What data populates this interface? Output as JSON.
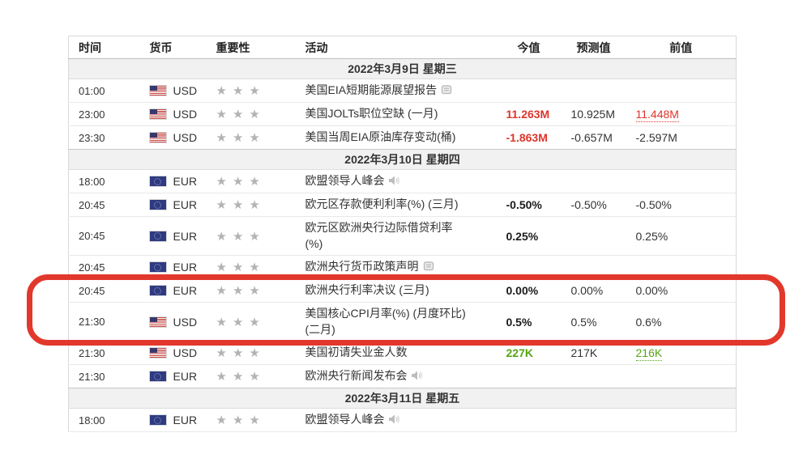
{
  "colors": {
    "red": "#dd342b",
    "green": "#55a513",
    "annotation": "#e2382c",
    "star": "#b3b3b3",
    "date_row_bg": "#f1f1f1"
  },
  "table": {
    "columns": [
      {
        "label": "时间",
        "align": "left"
      },
      {
        "label": "货币",
        "align": "left"
      },
      {
        "label": "重要性",
        "align": "left"
      },
      {
        "label": "活动",
        "align": "left"
      },
      {
        "label": "今值",
        "align": "center"
      },
      {
        "label": "预测值",
        "align": "center"
      },
      {
        "label": "前值",
        "align": "center"
      }
    ],
    "sections": [
      {
        "date_label": "2022年3月9日 星期三",
        "rows": [
          {
            "time": "01:00",
            "flag": "us",
            "currency": "USD",
            "stars": 3,
            "event_lines": [
              "美国EIA短期能源展望报告"
            ],
            "event_icon": "report-icon",
            "actual": "",
            "actual_color": null,
            "forecast": "",
            "previous": "",
            "previous_color": null,
            "previous_revised": false,
            "highlighted": false
          },
          {
            "time": "23:00",
            "flag": "us",
            "currency": "USD",
            "stars": 3,
            "event_lines": [
              "美国JOLTs职位空缺 (一月)"
            ],
            "event_icon": null,
            "actual": "11.263M",
            "actual_color": "red",
            "forecast": "10.925M",
            "previous": "11.448M",
            "previous_color": "red",
            "previous_revised": true,
            "highlighted": false
          },
          {
            "time": "23:30",
            "flag": "us",
            "currency": "USD",
            "stars": 3,
            "event_lines": [
              "美国当周EIA原油库存变动(桶)"
            ],
            "event_icon": null,
            "actual": "-1.863M",
            "actual_color": "red",
            "forecast": "-0.657M",
            "previous": "-2.597M",
            "previous_color": null,
            "previous_revised": false,
            "highlighted": false
          }
        ]
      },
      {
        "date_label": "2022年3月10日 星期四",
        "rows": [
          {
            "time": "18:00",
            "flag": "eu",
            "currency": "EUR",
            "stars": 3,
            "event_lines": [
              "欧盟领导人峰会"
            ],
            "event_icon": "speaker-icon",
            "actual": "",
            "actual_color": null,
            "forecast": "",
            "previous": "",
            "previous_color": null,
            "previous_revised": false,
            "highlighted": false
          },
          {
            "time": "20:45",
            "flag": "eu",
            "currency": "EUR",
            "stars": 3,
            "event_lines": [
              "欧元区存款便利利率(%) (三月)"
            ],
            "event_icon": null,
            "actual": "-0.50%",
            "actual_color": null,
            "forecast": "-0.50%",
            "previous": "-0.50%",
            "previous_color": null,
            "previous_revised": false,
            "highlighted": false
          },
          {
            "time": "20:45",
            "flag": "eu",
            "currency": "EUR",
            "stars": 3,
            "event_lines": [
              "欧元区欧洲央行边际借贷利率",
              "(%)"
            ],
            "event_icon": null,
            "actual": "0.25%",
            "actual_color": null,
            "forecast": "",
            "previous": "0.25%",
            "previous_color": null,
            "previous_revised": false,
            "highlighted": false
          },
          {
            "time": "20:45",
            "flag": "eu",
            "currency": "EUR",
            "stars": 3,
            "event_lines": [
              "欧洲央行货币政策声明"
            ],
            "event_icon": "report-icon",
            "actual": "",
            "actual_color": null,
            "forecast": "",
            "previous": "",
            "previous_color": null,
            "previous_revised": false,
            "highlighted": false
          },
          {
            "time": "20:45",
            "flag": "eu",
            "currency": "EUR",
            "stars": 3,
            "event_lines": [
              "欧洲央行利率决议 (三月)"
            ],
            "event_icon": null,
            "actual": "0.00%",
            "actual_color": null,
            "forecast": "0.00%",
            "previous": "0.00%",
            "previous_color": null,
            "previous_revised": false,
            "highlighted": true
          },
          {
            "time": "21:30",
            "flag": "us",
            "currency": "USD",
            "stars": 3,
            "event_lines": [
              "美国核心CPI月率(%) (月度环比)",
              "(二月)"
            ],
            "event_icon": null,
            "actual": "0.5%",
            "actual_color": null,
            "forecast": "0.5%",
            "previous": "0.6%",
            "previous_color": null,
            "previous_revised": false,
            "highlighted": true
          },
          {
            "time": "21:30",
            "flag": "us",
            "currency": "USD",
            "stars": 3,
            "event_lines": [
              "美国初请失业金人数"
            ],
            "event_icon": null,
            "actual": "227K",
            "actual_color": "green",
            "forecast": "217K",
            "previous": "216K",
            "previous_color": "green",
            "previous_revised": true,
            "highlighted": false
          },
          {
            "time": "21:30",
            "flag": "eu",
            "currency": "EUR",
            "stars": 3,
            "event_lines": [
              "欧洲央行新闻发布会"
            ],
            "event_icon": "speaker-icon",
            "actual": "",
            "actual_color": null,
            "forecast": "",
            "previous": "",
            "previous_color": null,
            "previous_revised": false,
            "highlighted": false
          }
        ]
      },
      {
        "date_label": "2022年3月11日 星期五",
        "rows": [
          {
            "time": "18:00",
            "flag": "eu",
            "currency": "EUR",
            "stars": 3,
            "event_lines": [
              "欧盟领导人峰会"
            ],
            "event_icon": "speaker-icon",
            "actual": "",
            "actual_color": null,
            "forecast": "",
            "previous": "",
            "previous_color": null,
            "previous_revised": false,
            "highlighted": false
          }
        ]
      }
    ]
  },
  "annotation": {
    "shape": "rounded-rectangle",
    "rows_highlighted": [
      "欧洲央行利率决议 (三月)",
      "美国核心CPI月率(%) (月度环比) (二月)"
    ]
  }
}
